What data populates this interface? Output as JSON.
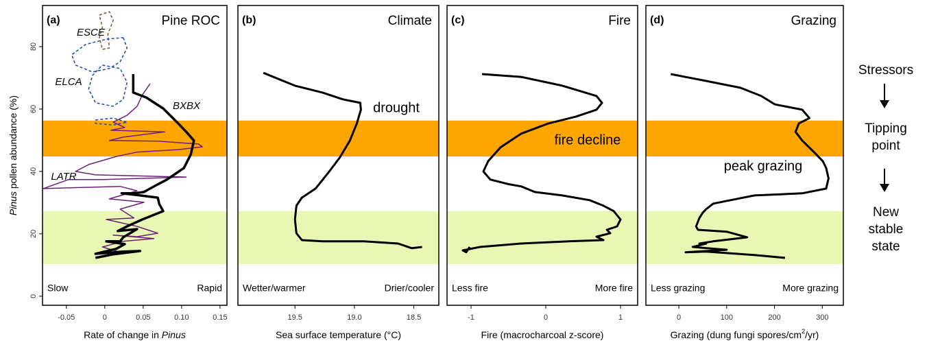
{
  "chart_data": [
    {
      "type": "line",
      "panel_label": "(a)",
      "title": "Pine ROC",
      "left_label": "Slow",
      "right_label": "Rapid",
      "xlabel": [
        "Rate of change in ",
        "Pinus"
      ],
      "ylabel": [
        "Pinus",
        " pollen abundance (%)"
      ],
      "xlim": [
        -0.081,
        0.159
      ],
      "xticks": [
        -0.05,
        0,
        0.05,
        {
          "value": 0.1,
          "label": "0.10"
        },
        0.15
      ],
      "ylim": [
        -2.9,
        93.2
      ],
      "yticks": [
        0,
        20,
        40,
        60,
        80
      ],
      "bands": [
        {
          "range": [
            44.8,
            56.3
          ],
          "color": "#ffa500"
        },
        {
          "range": [
            10.3,
            27.3
          ],
          "color": "#e9f7b4"
        }
      ],
      "annotations": [
        "ESCE",
        "ELCA",
        "BXBX",
        "LATR"
      ],
      "series": [
        {
          "color": "#8b5a2b",
          "width": 1.6,
          "dash": true,
          "x": [
            -0.007,
            0.006,
            0.011,
            0.004,
            0.006,
            -0.003,
            -0.007,
            -0.003,
            -0.007
          ],
          "values": [
            90.1,
            91.2,
            88.4,
            84.0,
            79.6,
            79.1,
            82.9,
            86.2,
            90.1
          ]
        },
        {
          "color": "#1f4fb4",
          "width": 1.6,
          "dash": true,
          "x": [
            0.024,
            0.029,
            0.02,
            0.006,
            -0.016,
            -0.038,
            -0.043,
            -0.025,
            0.002,
            0.024
          ],
          "values": [
            82.9,
            79.6,
            75.2,
            73.0,
            71.9,
            74.1,
            77.4,
            80.7,
            82.4,
            82.9
          ]
        },
        {
          "color": "#1f4fb4",
          "width": 1.6,
          "dash": true,
          "x": [
            -0.003,
            0.02,
            0.029,
            0.024,
            0.011,
            -0.012,
            -0.021,
            -0.016,
            -0.003
          ],
          "values": [
            74.1,
            73.0,
            68.6,
            63.1,
            60.9,
            62.0,
            66.4,
            70.8,
            74.1
          ]
        },
        {
          "color": "#1f4fb4",
          "width": 1.6,
          "dash": true,
          "x": [
            -0.012,
            0.011,
            0.029,
            0.011,
            -0.012,
            -0.012
          ],
          "values": [
            56.5,
            57.1,
            55.8,
            54.9,
            55.4,
            56.5
          ]
        },
        {
          "color": "#6b1f7a",
          "width": 1.5,
          "dash": false,
          "x": [
            0.059,
            0.049,
            0.042,
            0.029,
            0.011,
            0.026,
            0.008,
            0.078,
            0.024,
            0.006,
            0.069,
            0.122,
            0.127,
            0.096,
            0.042,
            0.015,
            -0.021,
            -0.038,
            -0.012,
            0.106,
            -0.003,
            -0.047,
            -0.08,
            0.02,
            0.042,
            0.006,
            0.051,
            0.02,
            0.038,
            0.002,
            0.042,
            0.069,
            0.042,
            0.011,
            0.064,
            0.024,
            -0.003,
            0.02
          ],
          "values": [
            68.1,
            64.6,
            60.9,
            58.0,
            55.8,
            54.1,
            53.2,
            52.7,
            51.0,
            49.9,
            49.7,
            48.8,
            47.9,
            47.0,
            46.2,
            44.8,
            42.2,
            40.0,
            38.9,
            38.2,
            37.4,
            37.4,
            34.5,
            35.2,
            33.8,
            31.2,
            30.1,
            27.9,
            25.1,
            24.6,
            22.4,
            20.2,
            19.1,
            19.6,
            18.5,
            17.6,
            15.8,
            14.1
          ]
        },
        {
          "color": "#000000",
          "width": 3.5,
          "dash": false,
          "x": [
            0.037,
            0.037,
            0.054,
            0.076,
            0.094,
            0.106,
            0.116,
            0.112,
            0.103,
            0.081,
            0.067,
            0.051,
            0.038,
            0.022,
            0.046,
            0.069,
            0.071,
            0.076,
            0.049,
            0.029,
            0.017,
            0.042,
            0.024,
            0.02,
            0.002,
            0.026,
            0.015,
            -0.012,
            0.024,
            0.046,
            0.01,
            -0.012
          ],
          "values": [
            71.2,
            65.3,
            63.7,
            60.2,
            55.8,
            52.7,
            49.9,
            45.5,
            41.1,
            37.4,
            35.6,
            33.4,
            33.0,
            33.0,
            32.3,
            31.6,
            29.5,
            27.3,
            24.6,
            22.4,
            20.9,
            21.5,
            18.9,
            17.6,
            17.6,
            16.7,
            15.2,
            13.6,
            14.3,
            14.5,
            13.4,
            12.3
          ]
        }
      ]
    },
    {
      "type": "line",
      "panel_label": "(b)",
      "title": "Climate",
      "left_label": "Wetter/warmer",
      "right_label": "Drier/cooler",
      "xlabel": [
        "Sea surface temperature (°C)"
      ],
      "xlim": [
        19.98,
        18.29
      ],
      "xticks": [
        19.5,
        {
          "value": 19,
          "label": "19.0"
        },
        18.5
      ],
      "ylim": [
        -2.9,
        93.2
      ],
      "bands": [
        {
          "range": [
            44.8,
            56.3
          ],
          "color": "#ffa500"
        },
        {
          "range": [
            10.3,
            27.3
          ],
          "color": "#e9f7b4"
        }
      ],
      "annotations": [
        "drought"
      ],
      "series": [
        {
          "color": "#000000",
          "width": 3,
          "dash": false,
          "x": [
            19.766,
            19.5,
            19.269,
            19.095,
            18.951,
            18.945,
            18.98,
            19.038,
            19.124,
            19.211,
            19.327,
            19.442,
            19.488,
            19.5,
            19.488,
            19.442,
            19.269,
            18.922,
            18.633,
            18.517,
            18.431
          ],
          "values": [
            71.6,
            67.5,
            65.3,
            63.1,
            62.0,
            59.8,
            55.4,
            49.9,
            44.4,
            40.0,
            34.5,
            31.6,
            29.0,
            24.6,
            20.2,
            18.0,
            17.6,
            17.6,
            16.9,
            15.4,
            15.8
          ]
        }
      ]
    },
    {
      "type": "line",
      "panel_label": "(c)",
      "title": "Fire",
      "left_label": "Less fire",
      "right_label": "More fire",
      "xlabel": [
        "Fire (macrocharcoal z-score)"
      ],
      "xlim": [
        -1.321,
        1.229
      ],
      "xticks": [
        -1,
        0,
        1
      ],
      "ylim": [
        -2.9,
        93.2
      ],
      "bands": [
        {
          "range": [
            44.8,
            56.3
          ],
          "color": "#ffa500"
        },
        {
          "range": [
            10.3,
            27.3
          ],
          "color": "#e9f7b4"
        }
      ],
      "annotations": [
        "fire decline"
      ],
      "series": [
        {
          "color": "#000000",
          "width": 3,
          "dash": false,
          "x": [
            -0.853,
            -0.33,
            0.22,
            0.679,
            0.752,
            0.679,
            0.404,
            0.037,
            -0.33,
            -0.606,
            -0.771,
            -0.835,
            -0.743,
            -0.514,
            -0.33,
            -0.147,
            0.22,
            0.587,
            0.771,
            0.908,
            1.0,
            0.954,
            0.817,
            0.862,
            0.679,
            0.771,
            0.312,
            -0.33,
            -0.881,
            -1.11,
            -1.064,
            -1.018
          ],
          "values": [
            71.2,
            70.3,
            67.5,
            64.2,
            62.0,
            59.8,
            57.6,
            55.4,
            52.1,
            47.7,
            43.3,
            40.0,
            37.4,
            36.0,
            35.2,
            33.4,
            32.3,
            30.8,
            29.0,
            27.3,
            24.6,
            22.4,
            21.3,
            20.2,
            19.1,
            18.0,
            17.6,
            16.9,
            15.8,
            14.7,
            14.1,
            15.8
          ]
        }
      ]
    },
    {
      "type": "line",
      "panel_label": "(d)",
      "title": "Grazing",
      "left_label": "Less grazing",
      "right_label": "More grazing",
      "xlabel": [
        "Grazing (dung fungi spores/cm",
        "2",
        "/yr)"
      ],
      "xlim": [
        -69,
        344
      ],
      "xticks": [
        0,
        100,
        200,
        300
      ],
      "ylim": [
        -2.9,
        93.2
      ],
      "bands": [
        {
          "range": [
            44.8,
            56.3
          ],
          "color": "#ffa500"
        },
        {
          "range": [
            10.3,
            27.3
          ],
          "color": "#e9f7b4"
        }
      ],
      "annotations": [
        "peak grazing"
      ],
      "series": [
        {
          "color": "#000000",
          "width": 3,
          "dash": false,
          "x": [
            -17,
            57,
            129,
            172,
            201,
            258,
            273,
            251,
            244,
            258,
            280,
            301,
            308,
            313,
            308,
            258,
            158,
            108,
            72,
            57,
            50,
            43,
            36,
            40,
            100,
            143,
            72,
            43,
            57,
            29,
            100,
            14,
            57,
            158,
            222
          ],
          "values": [
            71.2,
            69.0,
            66.8,
            64.2,
            61.5,
            59.8,
            57.1,
            55.4,
            52.7,
            49.9,
            46.6,
            43.3,
            41.1,
            37.8,
            34.5,
            33.0,
            32.3,
            30.8,
            29.7,
            27.9,
            26.8,
            25.1,
            22.4,
            21.3,
            20.7,
            18.9,
            17.6,
            16.9,
            16.9,
            15.8,
            14.9,
            14.1,
            14.3,
            13.2,
            12.3
          ]
        }
      ]
    }
  ],
  "side_notes": {
    "stressors": "Stressors",
    "tipping": [
      "Tipping",
      "point"
    ],
    "new_state": [
      "New",
      "stable",
      "state"
    ]
  }
}
